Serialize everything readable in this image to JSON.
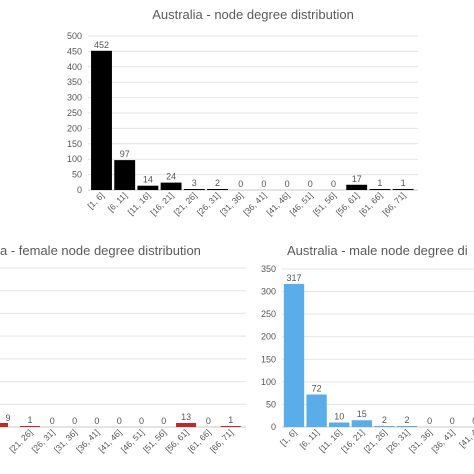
{
  "chart_data": [
    {
      "type": "bar",
      "title": "Australia - node degree distribution",
      "categories": [
        "[1, 6]",
        "[6, 11]",
        "[11, 16]",
        "[16, 21]",
        "[21, 26]",
        "[26, 31]",
        "[31, 36]",
        "[36, 41]",
        "[41, 46]",
        "[46, 51]",
        "[51, 56]",
        "[56, 61]",
        "[61, 66]",
        "[66, 71]"
      ],
      "values": [
        452,
        97,
        14,
        24,
        3,
        2,
        0,
        0,
        0,
        0,
        0,
        17,
        1,
        1
      ],
      "ylim": [
        0,
        500
      ],
      "yticks": [
        0,
        50,
        100,
        150,
        200,
        250,
        300,
        350,
        400,
        450,
        500
      ],
      "grid": true,
      "colors": {
        "bar": "#000000"
      }
    },
    {
      "type": "bar",
      "title": "a - female node degree distribution",
      "categories": [
        "[21, 26]",
        "[26, 31]",
        "[31, 36]",
        "[36, 41]",
        "[41, 46]",
        "[46, 51]",
        "[51, 56]",
        "[56, 61]",
        "[61, 66]",
        "[66, 71]"
      ],
      "values": [
        1,
        0,
        0,
        0,
        0,
        0,
        0,
        13,
        0,
        1
      ],
      "partial_label": "9",
      "grid": true,
      "colors": {
        "bar": "#c0272d"
      }
    },
    {
      "type": "bar",
      "title": "Australia - male node degree di",
      "categories": [
        "[1, 6]",
        "[6, 11]",
        "[11, 16]",
        "[16, 21]",
        "[21, 26]",
        "[26, 31]",
        "[31, 36]",
        "[36, 41]",
        "[41, 4"
      ],
      "values": [
        317,
        72,
        10,
        15,
        2,
        2,
        0,
        0,
        0
      ],
      "ylim": [
        0,
        350
      ],
      "yticks": [
        0,
        50,
        100,
        150,
        200,
        250,
        300,
        350
      ],
      "grid": true,
      "colors": {
        "bar": "#5aade8"
      }
    }
  ]
}
